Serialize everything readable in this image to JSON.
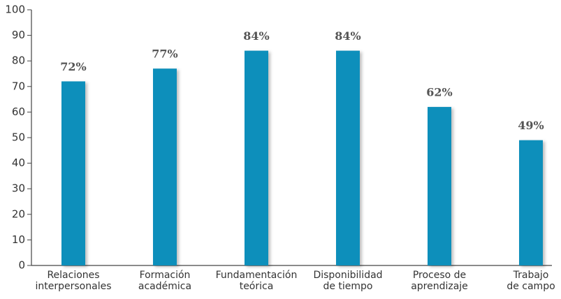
{
  "chart_data": {
    "type": "bar",
    "categories": [
      "Relaciones\ninterpersonales",
      "Formación\nacadémica",
      "Fundamentación\nteórica",
      "Disponibilidad\nde tiempo",
      "Proceso de\naprendizaje",
      "Trabajo\nde campo"
    ],
    "values": [
      72,
      77,
      84,
      84,
      62,
      49
    ],
    "value_labels": [
      "72%",
      "77%",
      "84%",
      "84%",
      "62%",
      "49%"
    ],
    "color": "#0e8fbb",
    "ylim": [
      0,
      100
    ],
    "yticks": [
      0,
      10,
      20,
      30,
      40,
      50,
      60,
      70,
      80,
      90,
      100
    ],
    "grid": false
  }
}
